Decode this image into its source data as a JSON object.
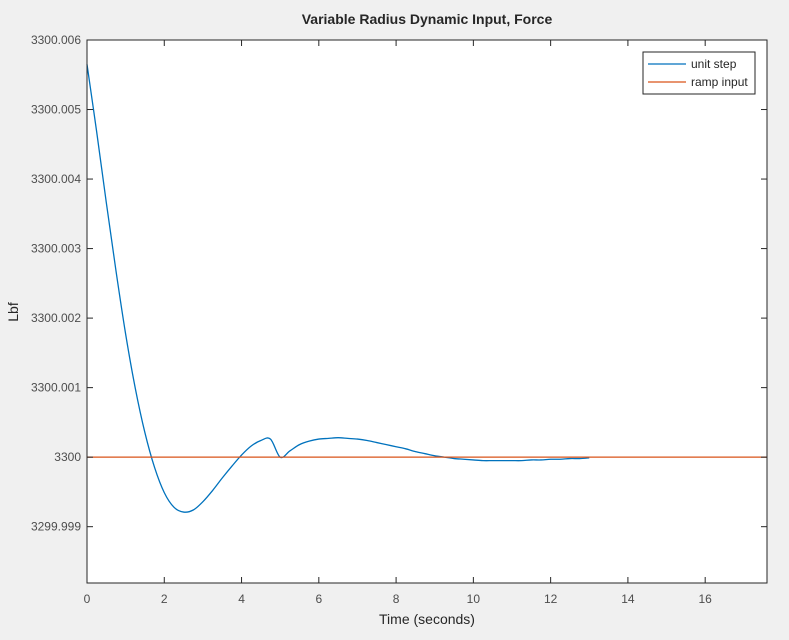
{
  "chart_data": {
    "type": "line",
    "title": "Variable Radius Dynamic Input, Force",
    "xlabel": "Time (seconds)",
    "ylabel": "Lbf",
    "xlim": [
      0,
      17.6
    ],
    "ylim": [
      3299.99819,
      3300.006
    ],
    "xticks": [
      0,
      2,
      4,
      6,
      8,
      10,
      12,
      14,
      16
    ],
    "xtick_labels": [
      "0",
      "2",
      "4",
      "6",
      "8",
      "10",
      "12",
      "14",
      "16"
    ],
    "yticks": [
      3299.999,
      3300,
      3300.001,
      3300.002,
      3300.003,
      3300.004,
      3300.005,
      3300.006
    ],
    "ytick_labels": [
      "3299.999",
      "3300",
      "3300.001",
      "3300.002",
      "3300.003",
      "3300.004",
      "3300.005",
      "3300.006"
    ],
    "grid": false,
    "legend_position": "top-right",
    "series": [
      {
        "name": "unit step",
        "color": "#0072bd",
        "x": [
          0,
          0.25,
          0.5,
          0.75,
          1.0,
          1.25,
          1.5,
          1.75,
          2.0,
          2.25,
          2.5,
          2.75,
          3.0,
          3.25,
          3.5,
          3.75,
          4.0,
          4.25,
          4.5,
          4.75,
          5.0,
          5.25,
          5.5,
          5.75,
          6.0,
          6.25,
          6.5,
          6.75,
          7.0,
          7.25,
          7.5,
          7.75,
          8.0,
          8.25,
          8.5,
          8.75,
          9.0,
          9.25,
          9.5,
          9.75,
          10.0,
          10.25,
          10.5,
          10.75,
          11.0,
          11.25,
          11.5,
          11.75,
          12.0,
          12.25,
          12.5,
          12.75,
          13.0
        ],
        "y": [
          3300.00565,
          3300.00468,
          3300.00366,
          3300.00268,
          3300.00177,
          3300.00099,
          3300.00035,
          3299.99985,
          3299.99949,
          3299.99928,
          3299.99921,
          3299.99924,
          3299.99936,
          3299.99952,
          3299.9997,
          3299.99987,
          3300.00003,
          3300.00016,
          3300.00024,
          3300.00026,
          3300.0,
          3300.00009,
          3300.00018,
          3300.00023,
          3300.00026,
          3300.00027,
          3300.00028,
          3300.00027,
          3300.00026,
          3300.00024,
          3300.00021,
          3300.00018,
          3300.00015,
          3300.00012,
          3300.00008,
          3300.00005,
          3300.00002,
          3300.0,
          3299.99998,
          3299.99997,
          3299.99996,
          3299.99995,
          3299.99995,
          3299.99995,
          3299.99995,
          3299.99995,
          3299.99996,
          3299.99996,
          3299.99997,
          3299.99997,
          3299.99998,
          3299.99998,
          3299.99999
        ]
      },
      {
        "name": "ramp input",
        "color": "#d95319",
        "x": [
          0,
          17.6
        ],
        "y": [
          3300,
          3300
        ]
      }
    ]
  }
}
